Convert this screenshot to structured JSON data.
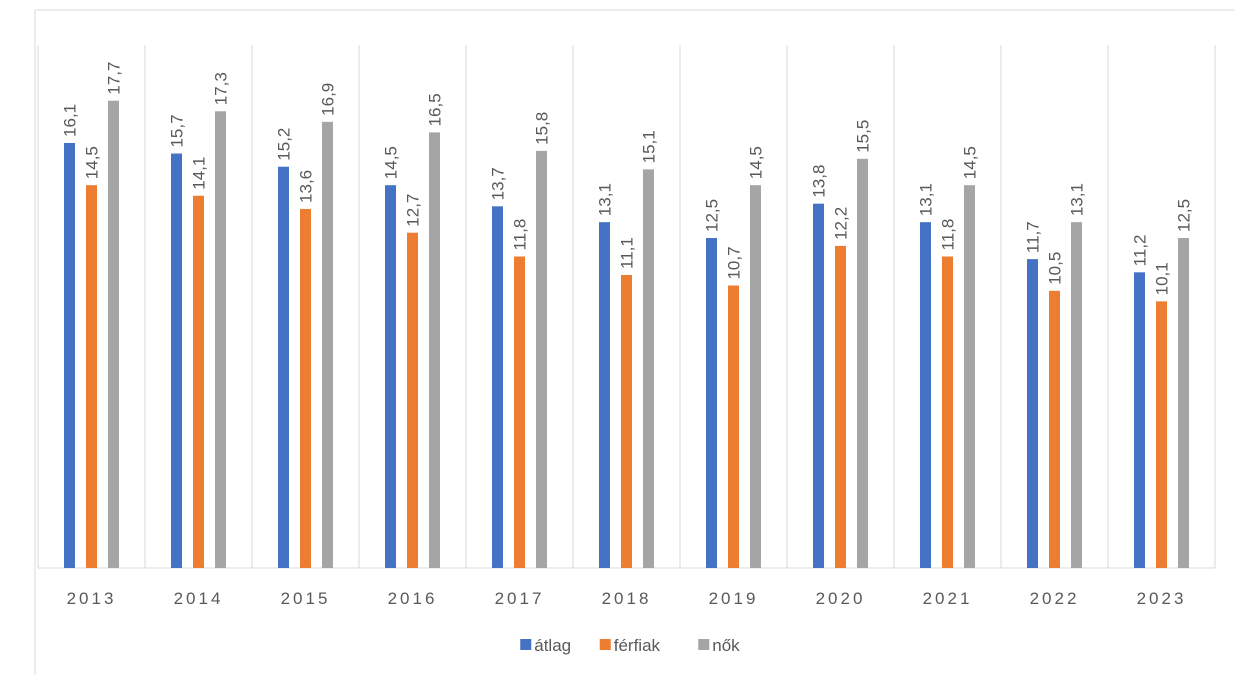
{
  "chart_data": {
    "type": "bar",
    "categories": [
      "2013",
      "2014",
      "2015",
      "2016",
      "2017",
      "2018",
      "2019",
      "2020",
      "2021",
      "2022",
      "2023"
    ],
    "series": [
      {
        "name": "átlag",
        "color": "#4472c4",
        "values": [
          16.1,
          15.7,
          15.2,
          14.5,
          13.7,
          13.1,
          12.5,
          13.8,
          13.1,
          11.7,
          11.2
        ],
        "value_labels": [
          "16,1",
          "15,7",
          "15,2",
          "14,5",
          "13,7",
          "13,1",
          "12,5",
          "13,8",
          "13,1",
          "11,7",
          "11,2"
        ]
      },
      {
        "name": "férfiak",
        "color": "#ed7d31",
        "values": [
          14.5,
          14.1,
          13.6,
          12.7,
          11.8,
          11.1,
          10.7,
          12.2,
          11.8,
          10.5,
          10.1
        ],
        "value_labels": [
          "14,5",
          "14,1",
          "13,6",
          "12,7",
          "11,8",
          "11,1",
          "10,7",
          "12,2",
          "11,8",
          "10,5",
          "10,1"
        ]
      },
      {
        "name": "nők",
        "color": "#a5a5a5",
        "values": [
          17.7,
          17.3,
          16.9,
          16.5,
          15.8,
          15.1,
          14.5,
          15.5,
          14.5,
          13.1,
          12.5
        ],
        "value_labels": [
          "17,7",
          "17,3",
          "16,9",
          "16,5",
          "15,8",
          "15,1",
          "14,5",
          "15,5",
          "14,5",
          "13,1",
          "12,5"
        ]
      }
    ],
    "ylim": [
      0,
      20
    ],
    "legend": "bottom"
  }
}
